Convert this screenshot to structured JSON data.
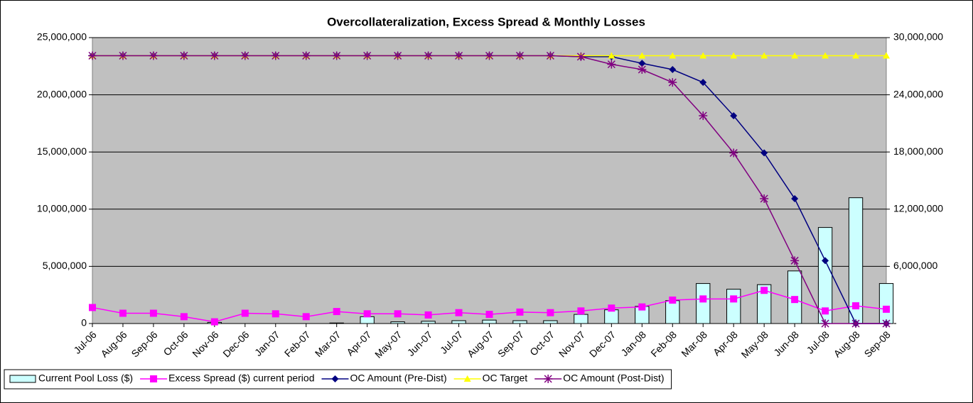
{
  "chart_data": {
    "type": "combo",
    "title": "Overcollateralization, Excess Spread & Monthly Losses",
    "categories": [
      "Jul-06",
      "Aug-06",
      "Sep-06",
      "Oct-06",
      "Nov-06",
      "Dec-06",
      "Jan-07",
      "Feb-07",
      "Mar-07",
      "Apr-07",
      "May-07",
      "Jun-07",
      "Jul-07",
      "Aug-07",
      "Sep-07",
      "Oct-07",
      "Nov-07",
      "Dec-07",
      "Jan-08",
      "Feb-08",
      "Mar-08",
      "Apr-08",
      "May-08",
      "Jun-08",
      "Jul-08",
      "Aug-08",
      "Sep-08"
    ],
    "ylim": [
      0,
      25000000
    ],
    "yticks": [
      {
        "value": 0,
        "label": "0"
      },
      {
        "value": 5000000,
        "label": "5,000,000"
      },
      {
        "value": 10000000,
        "label": "10,000,000"
      },
      {
        "value": 15000000,
        "label": "15,000,000"
      },
      {
        "value": 20000000,
        "label": "20,000,000"
      },
      {
        "value": 25000000,
        "label": "25,000,000"
      }
    ],
    "y2lim": [
      0,
      30000000
    ],
    "y2ticks": [
      {
        "value": 0,
        "label": "-"
      },
      {
        "value": 6000000,
        "label": "6,000,000"
      },
      {
        "value": 12000000,
        "label": "12,000,000"
      },
      {
        "value": 18000000,
        "label": "18,000,000"
      },
      {
        "value": 24000000,
        "label": "24,000,000"
      },
      {
        "value": 30000000,
        "label": "30,000,000"
      }
    ],
    "grid": true,
    "legend": "bottom",
    "series": [
      {
        "name": "Current Pool Loss ($)",
        "type": "bar",
        "color": "#ccffff",
        "values": [
          0,
          0,
          0,
          0,
          100000,
          0,
          0,
          0,
          50000,
          600000,
          150000,
          200000,
          250000,
          300000,
          250000,
          250000,
          800000,
          1200000,
          1500000,
          2000000,
          3500000,
          3000000,
          3400000,
          4600000,
          8400000,
          11000000,
          3500000
        ]
      },
      {
        "name": "Excess Spread ($) current period",
        "type": "line",
        "marker": "square",
        "color": "#ff00ff",
        "values": [
          1400000,
          900000,
          900000,
          600000,
          150000,
          900000,
          850000,
          600000,
          1050000,
          850000,
          850000,
          750000,
          950000,
          800000,
          1000000,
          950000,
          1100000,
          1350000,
          1450000,
          2050000,
          2150000,
          2150000,
          2900000,
          2100000,
          1100000,
          1550000,
          1250000
        ]
      },
      {
        "name": "OC Amount (Pre-Dist)",
        "type": "line",
        "marker": "diamond",
        "color": "#000080",
        "axis": "y2",
        "values": [
          28100000,
          28100000,
          28100000,
          28100000,
          28100000,
          28100000,
          28100000,
          28100000,
          28100000,
          28100000,
          28100000,
          28100000,
          28100000,
          28100000,
          28100000,
          28100000,
          28000000,
          28000000,
          27300000,
          26650000,
          25300000,
          21800000,
          17900000,
          13100000,
          6600000,
          0,
          0
        ]
      },
      {
        "name": "OC Target",
        "type": "line",
        "marker": "triangle",
        "color": "#ffff00",
        "axis": "y2",
        "values": [
          28100000,
          28100000,
          28100000,
          28100000,
          28100000,
          28100000,
          28100000,
          28100000,
          28100000,
          28100000,
          28100000,
          28100000,
          28100000,
          28100000,
          28100000,
          28100000,
          28100000,
          28100000,
          28100000,
          28100000,
          28100000,
          28100000,
          28100000,
          28100000,
          28100000,
          28100000,
          28100000
        ]
      },
      {
        "name": "OC Amount (Post-Dist)",
        "type": "line",
        "marker": "star",
        "color": "#800080",
        "axis": "y2",
        "values": [
          28100000,
          28100000,
          28100000,
          28100000,
          28100000,
          28100000,
          28100000,
          28100000,
          28100000,
          28100000,
          28100000,
          28100000,
          28100000,
          28100000,
          28100000,
          28100000,
          28000000,
          27200000,
          26650000,
          25300000,
          21800000,
          17900000,
          13100000,
          6600000,
          0,
          0,
          0
        ]
      }
    ]
  }
}
